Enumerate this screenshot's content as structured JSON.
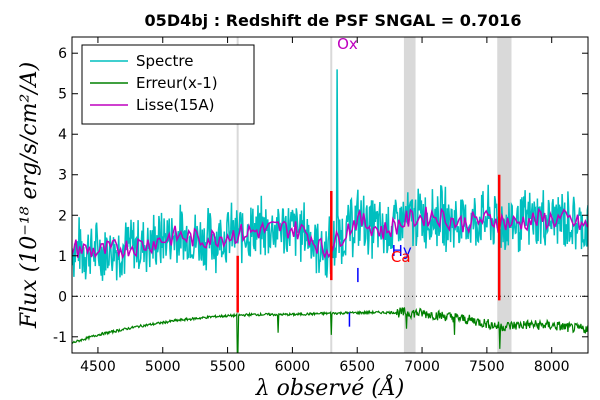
{
  "chart_data": {
    "type": "line",
    "title": "05D4bj : Redshift de PSF SNGAL = 0.7016",
    "xlabel": "λ observé (Å)",
    "ylabel": "Flux (10⁻¹⁸ erg/s/cm²/A)",
    "xlim": [
      4300,
      8280
    ],
    "ylim": [
      -1.4,
      6.4
    ],
    "xticks": [
      4500,
      5000,
      5500,
      6000,
      6500,
      7000,
      7500,
      8000
    ],
    "yticks": [
      -1,
      0,
      1,
      2,
      3,
      4,
      5,
      6
    ],
    "zero_line": 0,
    "legend": [
      "Spectre",
      "Erreur(x-1)",
      "Lisse(15A)"
    ],
    "colors": {
      "spectre": "#00bfbf",
      "erreur": "#008000",
      "lisse": "#bf00bf",
      "lines_red": "#ff0000",
      "lines_blue": "#0000ff",
      "bands": "#d9d9d9"
    },
    "shaded_bands": [
      [
        5570,
        5585
      ],
      [
        6292,
        6305
      ],
      [
        6860,
        6950
      ],
      [
        7580,
        7690
      ]
    ],
    "sky_lines_red": [
      {
        "x": 5578,
        "y_low": -0.4,
        "y_high": 1.0
      },
      {
        "x": 6300,
        "y_low": 0.4,
        "y_high": 2.6
      },
      {
        "x": 7595,
        "y_low": -0.1,
        "y_high": 3.0
      }
    ],
    "line_ids": [
      {
        "label": "Ox",
        "x": 6345,
        "y": 6.1,
        "color": "#bf00bf"
      },
      {
        "label": "Hy",
        "x": 6765,
        "y": 1.0,
        "color": "#0000ff"
      },
      {
        "label": "Ca",
        "x": 6760,
        "y": 0.85,
        "color": "#ff0000"
      }
    ],
    "blue_markers": [
      {
        "x": 6505,
        "y_low": 0.35,
        "y_high": 0.7
      },
      {
        "x": 6440,
        "y_low": -0.75,
        "y_high": -0.4
      }
    ],
    "spectre": {
      "x_start": 4300,
      "x_end": 8280,
      "step": 5,
      "seed": 7,
      "noise": 0.75,
      "features": [
        {
          "x": 6345,
          "y": 5.6
        }
      ]
    },
    "lisse": {
      "x": [
        4300,
        4500,
        4700,
        4900,
        5100,
        5300,
        5500,
        5700,
        5900,
        6100,
        6250,
        6350,
        6500,
        6700,
        6900,
        7100,
        7300,
        7500,
        7700,
        7900,
        8100,
        8280
      ],
      "y": [
        1.2,
        1.1,
        1.2,
        1.3,
        1.5,
        1.4,
        1.5,
        1.6,
        1.7,
        1.6,
        1.1,
        1.4,
        1.9,
        1.6,
        1.9,
        2.0,
        1.8,
        1.9,
        1.8,
        1.9,
        1.9,
        1.7
      ]
    },
    "erreur": {
      "x": [
        4300,
        4500,
        4800,
        5100,
        5400,
        5700,
        6000,
        6300,
        6600,
        6800,
        7000,
        7200,
        7400,
        7600,
        7800,
        8000,
        8200,
        8280
      ],
      "y": [
        -1.15,
        -0.95,
        -0.75,
        -0.6,
        -0.5,
        -0.45,
        -0.45,
        -0.42,
        -0.4,
        -0.4,
        -0.42,
        -0.5,
        -0.6,
        -0.75,
        -0.7,
        -0.72,
        -0.8,
        -0.8
      ]
    },
    "erreur_dips": [
      {
        "x": 5578,
        "y": -1.4
      },
      {
        "x": 6300,
        "y": -0.95
      },
      {
        "x": 5890,
        "y": -0.9
      },
      {
        "x": 7600,
        "y": -1.3
      },
      {
        "x": 7250,
        "y": -0.95
      },
      {
        "x": 6880,
        "y": -0.8
      }
    ]
  }
}
